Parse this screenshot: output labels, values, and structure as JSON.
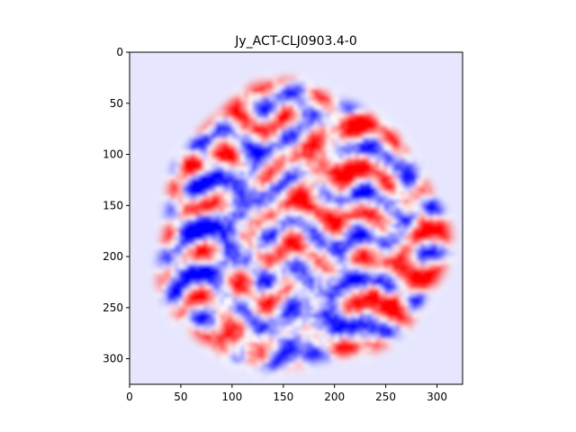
{
  "chart_data": {
    "type": "heatmap",
    "title": "Jy_ACT-CLJ0903.4-0",
    "xlabel": "",
    "ylabel": "",
    "xlim": [
      0,
      325
    ],
    "ylim": [
      325,
      0
    ],
    "x_ticks": [
      0,
      50,
      100,
      150,
      200,
      250,
      300
    ],
    "y_ticks": [
      0,
      50,
      100,
      150,
      200,
      250,
      300
    ],
    "x_tick_labels": [
      "0",
      "50",
      "100",
      "150",
      "200",
      "250",
      "300"
    ],
    "y_tick_labels": [
      "0",
      "50",
      "100",
      "150",
      "200",
      "250",
      "300"
    ],
    "colormap": "bwr",
    "background_color": "#e6e6ff",
    "footprint_center": [
      165,
      175
    ],
    "footprint_radius": 150,
    "notable_features": [
      {
        "kind": "positive-peak",
        "x": 238,
        "y": 234
      },
      {
        "kind": "negative-blob",
        "x": 72,
        "y": 102
      },
      {
        "kind": "negative-blob",
        "x": 120,
        "y": 115
      },
      {
        "kind": "negative-blob",
        "x": 272,
        "y": 162
      }
    ],
    "grid": false,
    "legend": "none"
  }
}
